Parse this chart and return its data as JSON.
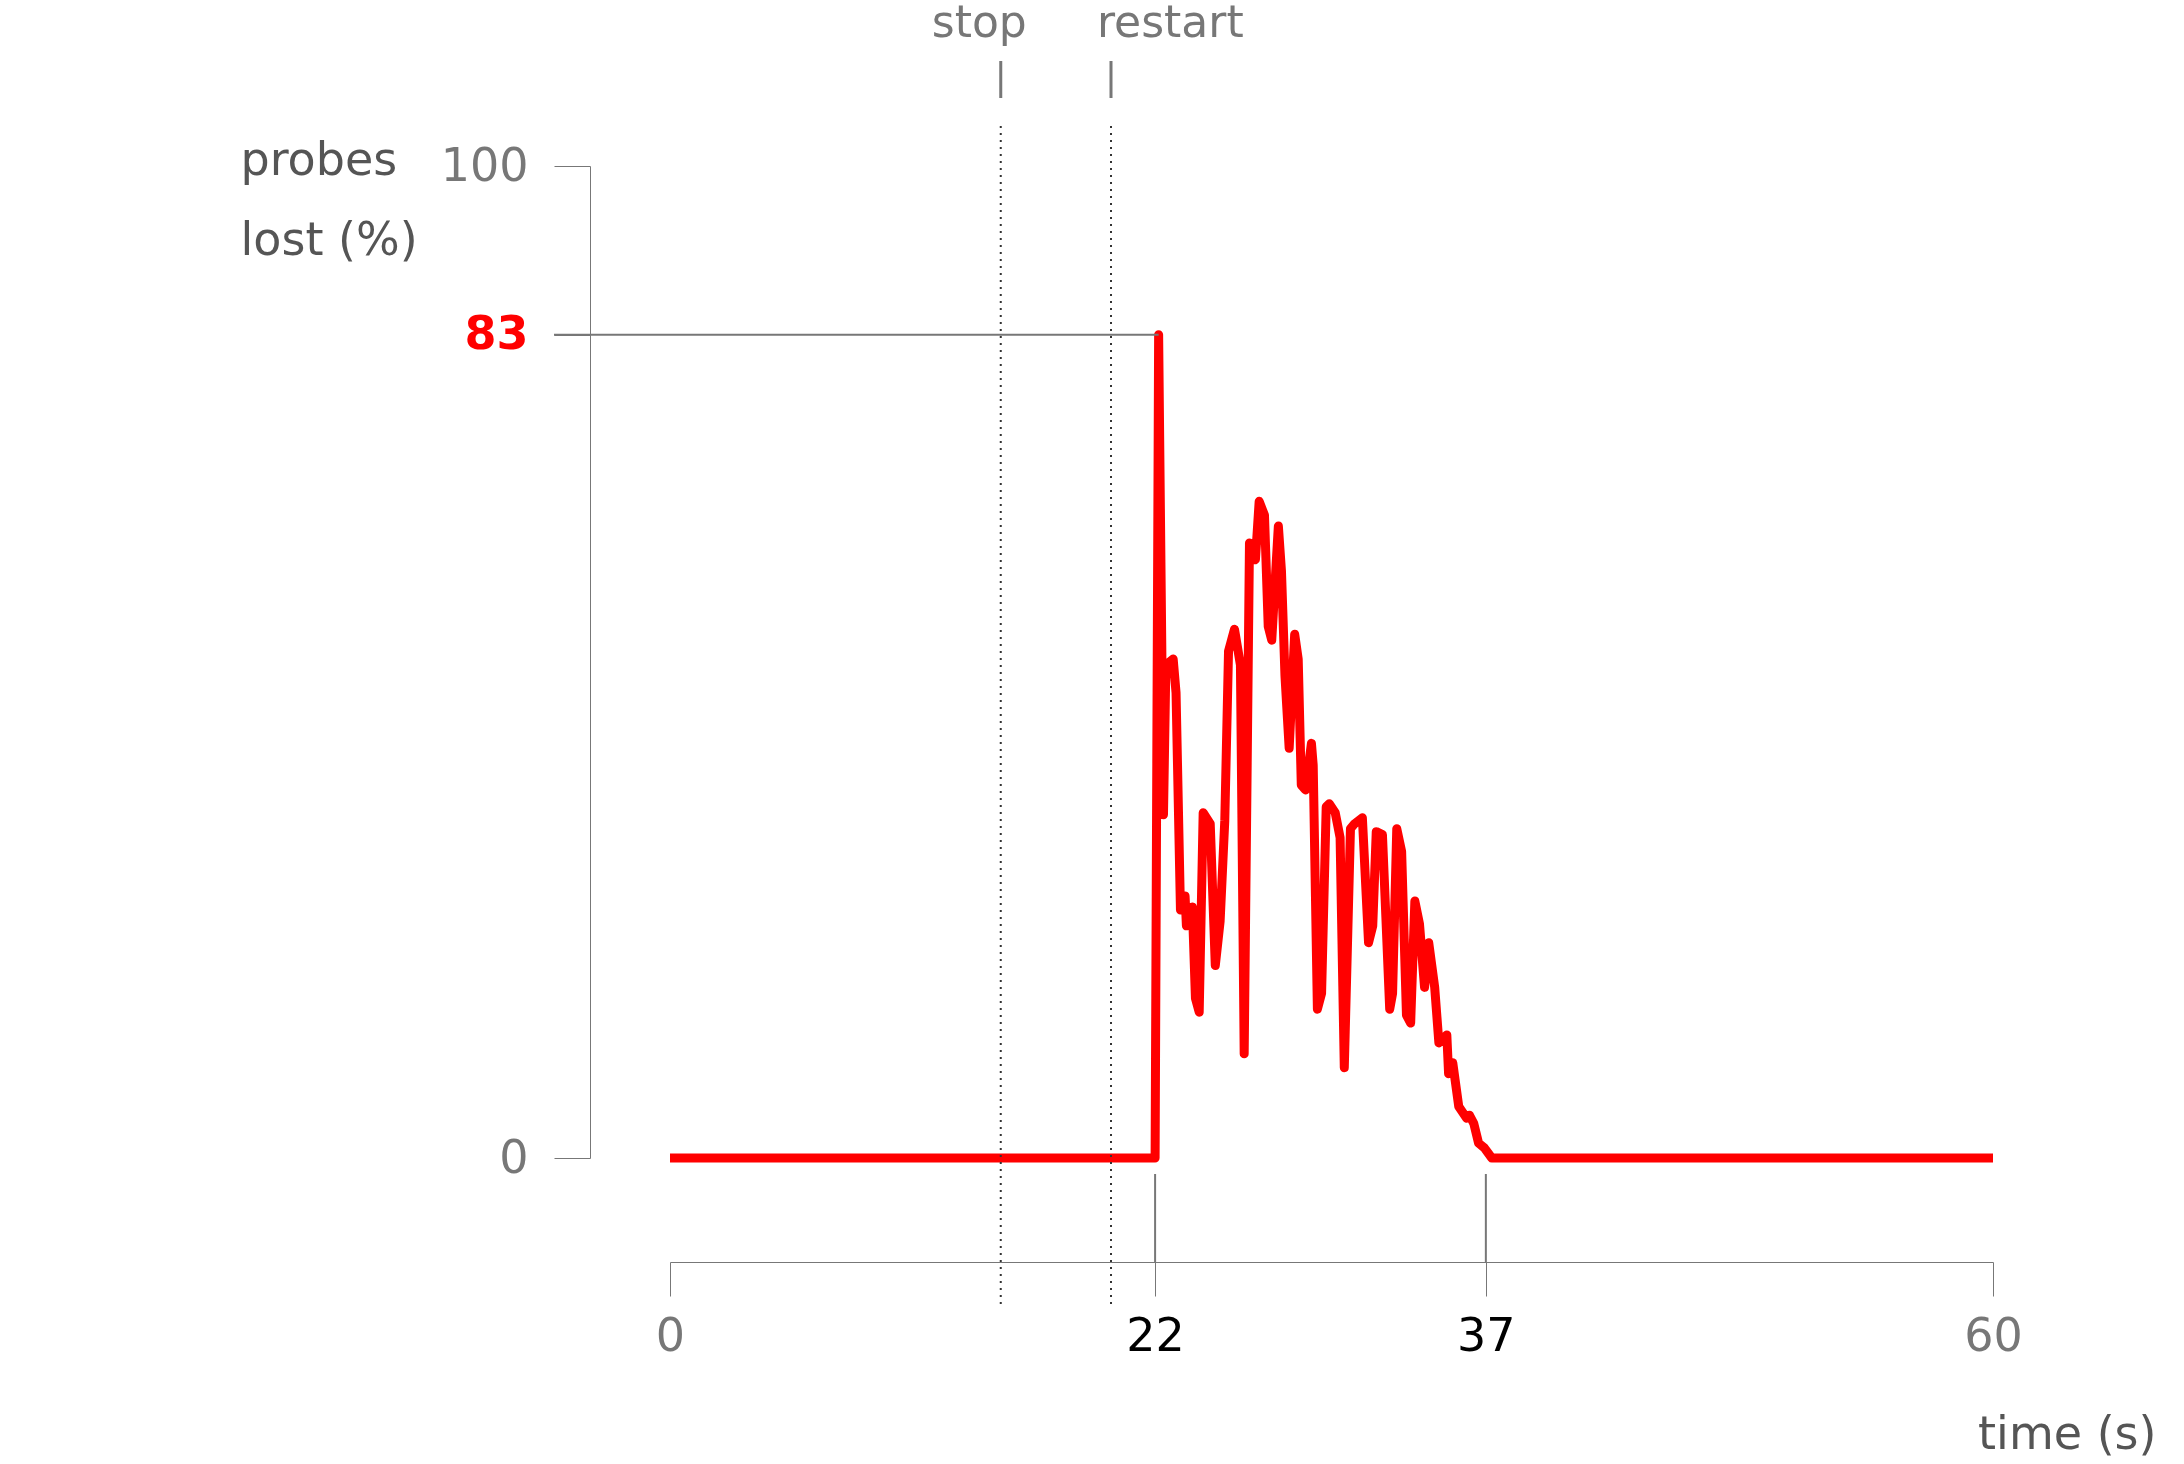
{
  "chart_data": {
    "type": "line",
    "xlabel": "time (s)",
    "ylabel": "probes lost (%)",
    "xlim": [
      0,
      60
    ],
    "ylim": [
      0,
      100
    ],
    "xticks": [
      0,
      22,
      37,
      60
    ],
    "yticks": [
      0,
      83,
      100
    ],
    "marker": "none",
    "line_style": "solid",
    "ref_lines": [
      {
        "axis": "x",
        "value": 15,
        "label": "stop",
        "line_style": "dotted"
      },
      {
        "axis": "x",
        "value": 20,
        "label": "restart",
        "line_style": "dotted"
      },
      {
        "axis": "y",
        "value": 83,
        "line_style": "solid"
      }
    ],
    "series": [
      {
        "color": "#ff0000",
        "x": [
          0,
          22,
          22.16,
          22.38,
          22.49,
          22.82,
          22.95,
          23.15,
          23.36,
          23.42,
          23.69,
          23.83,
          24.0,
          24.18,
          24.5,
          24.73,
          24.95,
          25.16,
          25.33,
          25.6,
          25.87,
          26.04,
          26.28,
          26.55,
          26.72,
          26.96,
          27.13,
          27.29,
          27.59,
          27.73,
          27.89,
          28.08,
          28.33,
          28.49,
          28.63,
          28.82,
          29.09,
          29.17,
          29.36,
          29.55,
          29.76,
          29.9,
          30.17,
          30.39,
          30.58,
          30.86,
          31.05,
          31.4,
          31.68,
          31.87,
          32.03,
          32.31,
          32.64,
          32.77,
          32.96,
          33.18,
          33.4,
          33.59,
          33.78,
          33.99,
          34.22,
          34.41,
          34.68,
          34.87,
          35.23,
          35.31,
          35.5,
          35.77,
          36.13,
          36.26,
          36.45,
          36.67,
          36.94,
          37.27,
          60
        ],
        "values": [
          0,
          0,
          83,
          34.6,
          49.7,
          50.3,
          46.9,
          25.0,
          26.4,
          23.4,
          25.3,
          16.1,
          14.7,
          34.8,
          33.7,
          19.4,
          23.9,
          34.0,
          51.1,
          53.3,
          49.7,
          10.5,
          62.0,
          60.3,
          66.2,
          64.8,
          53.6,
          52.2,
          63.7,
          59.2,
          48.6,
          41.3,
          52.8,
          50.3,
          37.6,
          37.1,
          41.8,
          39.6,
          15.0,
          16.6,
          35.4,
          35.7,
          34.8,
          32.3,
          9.1,
          33.2,
          33.7,
          34.3,
          21.7,
          23.4,
          32.9,
          32.6,
          15.0,
          16.6,
          33.2,
          30.9,
          14.4,
          13.6,
          25.9,
          23.6,
          17.2,
          21.7,
          17.2,
          11.6,
          12.4,
          8.5,
          9.6,
          5.2,
          4.0,
          4.3,
          3.5,
          1.5,
          1.0,
          0,
          0
        ]
      }
    ]
  }
}
